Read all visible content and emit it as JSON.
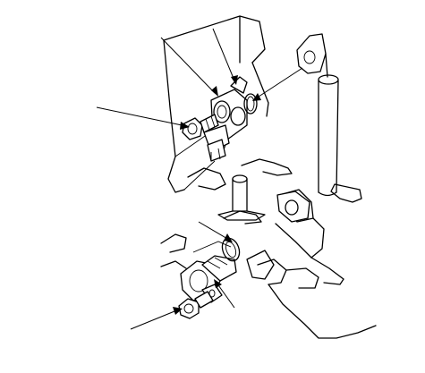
{
  "figure": {
    "background": "#ffffff",
    "line_color": "#000000",
    "components": [
      {
        "name": "upper-mounting-bracket"
      },
      {
        "name": "upper-sensor-assembly"
      },
      {
        "name": "upper-o-ring"
      },
      {
        "name": "upper-connector"
      },
      {
        "name": "upper-bolt"
      },
      {
        "name": "vertical-pipe"
      },
      {
        "name": "pipe-support-bracket"
      },
      {
        "name": "central-stud"
      },
      {
        "name": "lower-sensor-assembly"
      },
      {
        "name": "lower-o-ring"
      },
      {
        "name": "lower-bolt"
      },
      {
        "name": "lower-mounting-bracket"
      },
      {
        "name": "engine-block-outline"
      }
    ],
    "callouts": [
      {
        "name": "leader-upper-bolt",
        "arrow": "end"
      },
      {
        "name": "leader-upper-bracket-top",
        "arrow": "end"
      },
      {
        "name": "leader-upper-sensor",
        "arrow": "end"
      },
      {
        "name": "leader-upper-o-ring",
        "arrow": "end"
      },
      {
        "name": "leader-lower-o-ring",
        "arrow": "end"
      },
      {
        "name": "leader-lower-sensor",
        "arrow": "end"
      },
      {
        "name": "leader-lower-bolt",
        "arrow": "end"
      }
    ]
  }
}
